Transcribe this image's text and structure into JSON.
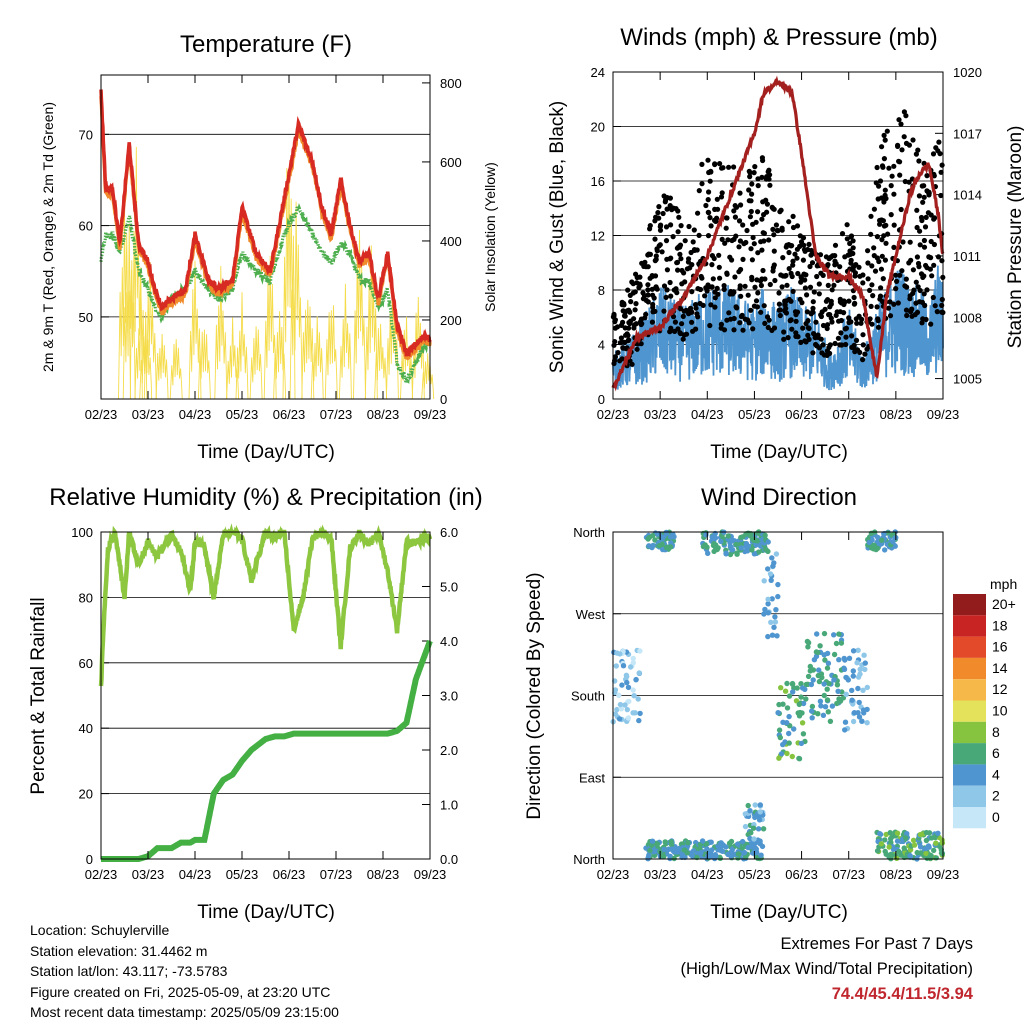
{
  "footer": {
    "location": "Location: Schuylerville",
    "elevation": "Station elevation: 31.4462 m",
    "latlon": "Station lat/lon: 43.117; -73.5783",
    "created": "Figure created on Fri, 2025-05-09, at 23:20 UTC",
    "recent": "Most recent data timestamp: 2025/05/09 23:15:00"
  },
  "extremes": {
    "title": "Extremes For Past 7 Days",
    "subtitle": "(High/Low/Max Wind/Total Precipitation)",
    "values": "74.4/45.4/11.5/3.94"
  },
  "colors": {
    "temp_2m": "#d62a22",
    "temp_9m": "#f08a2a",
    "dewpoint": "#4cae4c",
    "solar": "#f5dc4a",
    "wind": "#4f95cf",
    "gust": "#000000",
    "pressure": "#a3201f",
    "humidity": "#8dc63f",
    "precip": "#44b044"
  },
  "chart_data": [
    {
      "type": "line",
      "title": "Temperature (F)",
      "xlabel": "Time (Day/UTC)",
      "ylabel": "2m & 9m T (Red, Orange) & 2m Td (Green)",
      "y2label": "Solar Insolation (Yellow)",
      "x_ticks": [
        "02/23",
        "03/23",
        "04/23",
        "05/23",
        "06/23",
        "07/23",
        "08/23",
        "09/23"
      ],
      "y_ticks": [
        "50",
        "60",
        "70"
      ],
      "y2_ticks": [
        "0",
        "200",
        "400",
        "600",
        "800"
      ],
      "ylim": [
        41,
        76.5
      ],
      "y2lim": [
        0,
        820
      ],
      "grid": true,
      "x": [
        0,
        0.1,
        0.25,
        0.4,
        0.6,
        0.8,
        1.0,
        1.15,
        1.3,
        1.5,
        1.8,
        2.0,
        2.3,
        2.5,
        2.8,
        3.0,
        3.3,
        3.6,
        3.9,
        4.2,
        4.5,
        4.7,
        4.9,
        5.1,
        5.3,
        5.5,
        5.7,
        5.9,
        6.1,
        6.3,
        6.5,
        6.7,
        6.9,
        7.0
      ],
      "series": [
        {
          "name": "2m T",
          "values": [
            75,
            64,
            64,
            58,
            69,
            58,
            56,
            53,
            51,
            52,
            53,
            59,
            54,
            53,
            54,
            62,
            57,
            55,
            63,
            71,
            67,
            62,
            59,
            65,
            60,
            56,
            57,
            52,
            57,
            49,
            46,
            47,
            48,
            47.5
          ]
        },
        {
          "name": "9m T",
          "values": [
            74,
            63.5,
            63.5,
            57.5,
            68.5,
            57.5,
            55.5,
            52.5,
            50.5,
            51.5,
            52.5,
            58.5,
            53.5,
            52.5,
            53.5,
            61.5,
            56.5,
            54.5,
            62.5,
            70.5,
            66.5,
            61.5,
            58.5,
            64.5,
            59.5,
            55.5,
            56.5,
            51.5,
            56.5,
            48.5,
            45.5,
            46.5,
            47.5,
            47
          ]
        },
        {
          "name": "2m Td",
          "values": [
            56,
            59,
            59,
            57,
            61,
            55,
            53,
            51,
            50,
            52,
            53,
            55,
            53,
            52,
            53,
            57,
            55,
            54,
            59,
            62,
            59,
            57,
            56,
            58,
            57,
            54,
            54,
            51,
            53,
            45,
            43,
            45,
            47,
            47
          ]
        }
      ],
      "solar_peaks": [
        {
          "x": 0.5,
          "value": 540
        },
        {
          "x": 0.6,
          "value": 460
        },
        {
          "x": 0.75,
          "value": 680
        },
        {
          "x": 0.85,
          "value": 300
        },
        {
          "x": 0.95,
          "value": 240
        },
        {
          "x": 1.05,
          "value": 360
        },
        {
          "x": 1.3,
          "value": 220
        },
        {
          "x": 1.6,
          "value": 180
        },
        {
          "x": 2.0,
          "value": 370
        },
        {
          "x": 2.2,
          "value": 240
        },
        {
          "x": 2.55,
          "value": 370
        },
        {
          "x": 2.8,
          "value": 210
        },
        {
          "x": 3.0,
          "value": 300
        },
        {
          "x": 3.3,
          "value": 240
        },
        {
          "x": 3.6,
          "value": 410
        },
        {
          "x": 3.8,
          "value": 260
        },
        {
          "x": 4.0,
          "value": 760
        },
        {
          "x": 4.15,
          "value": 560
        },
        {
          "x": 4.4,
          "value": 320
        },
        {
          "x": 4.6,
          "value": 240
        },
        {
          "x": 4.9,
          "value": 310
        },
        {
          "x": 5.2,
          "value": 310
        },
        {
          "x": 5.5,
          "value": 520
        },
        {
          "x": 5.75,
          "value": 410
        },
        {
          "x": 5.95,
          "value": 240
        },
        {
          "x": 6.2,
          "value": 320
        },
        {
          "x": 6.5,
          "value": 230
        },
        {
          "x": 6.75,
          "value": 310
        },
        {
          "x": 6.95,
          "value": 150
        }
      ]
    },
    {
      "type": "scatter",
      "title": "Winds (mph) & Pressure (mb)",
      "xlabel": "Time (Day/UTC)",
      "ylabel": "Sonic Wind & Gust (Blue, Black)",
      "y2label": "Station Pressure (Maroon)",
      "x_ticks": [
        "02/23",
        "03/23",
        "04/23",
        "05/23",
        "06/23",
        "07/23",
        "08/23",
        "09/23"
      ],
      "y_ticks": [
        "0",
        "4",
        "8",
        "12",
        "16",
        "20",
        "24"
      ],
      "y2_ticks": [
        "1005",
        "1008",
        "1011",
        "1014",
        "1017",
        "1020"
      ],
      "ylim": [
        0,
        24
      ],
      "y2lim": [
        1004,
        1020
      ],
      "grid": true,
      "x": [
        0,
        0.5,
        1.0,
        1.5,
        2.0,
        2.5,
        3.0,
        3.2,
        3.5,
        3.8,
        4.0,
        4.3,
        4.6,
        4.8,
        5.0,
        5.3,
        5.6,
        5.8,
        6.1,
        6.3,
        6.5,
        6.7,
        6.9,
        7.0
      ],
      "series": [
        {
          "name": "Wind",
          "values": [
            2,
            3,
            5,
            4,
            5,
            5,
            4,
            5,
            4,
            5,
            4,
            4,
            2,
            3,
            4,
            2,
            4,
            5,
            6,
            5,
            5,
            4,
            6,
            5
          ]
        },
        {
          "name": "Gust",
          "values": [
            4,
            6,
            10,
            9,
            12,
            11,
            11,
            12,
            9,
            9,
            8,
            7,
            7,
            8,
            9,
            6,
            11,
            13,
            14,
            13,
            12,
            11,
            13,
            12
          ]
        },
        {
          "name": "Pressure",
          "values": [
            1004.5,
            1007,
            1007.5,
            1009,
            1011,
            1014,
            1017,
            1019,
            1019.5,
            1019,
            1016,
            1011,
            1010,
            1010,
            1010,
            1009,
            1005,
            1009,
            1012,
            1014,
            1015,
            1015.5,
            1013,
            1011
          ]
        }
      ]
    },
    {
      "type": "line",
      "title": "Relative Humidity (%) & Precipitation (in)",
      "xlabel": "Time (Day/UTC)",
      "ylabel": "Percent & Total Rainfall",
      "x_ticks": [
        "02/23",
        "03/23",
        "04/23",
        "05/23",
        "06/23",
        "07/23",
        "08/23",
        "09/23"
      ],
      "y_ticks": [
        "0",
        "20",
        "40",
        "60",
        "80",
        "100"
      ],
      "y2_ticks": [
        "0.0",
        "1.0",
        "2.0",
        "3.0",
        "4.0",
        "5.0",
        "6.0"
      ],
      "ylim": [
        0,
        100
      ],
      "y2lim": [
        0,
        6
      ],
      "grid": true,
      "x": [
        0,
        0.05,
        0.15,
        0.3,
        0.5,
        0.6,
        0.8,
        1.0,
        1.2,
        1.5,
        1.7,
        1.9,
        2.0,
        2.2,
        2.4,
        2.6,
        2.8,
        3.0,
        3.2,
        3.5,
        3.7,
        3.9,
        4.1,
        4.3,
        4.5,
        4.7,
        4.9,
        5.1,
        5.3,
        5.5,
        5.7,
        5.9,
        6.1,
        6.3,
        6.5,
        6.7,
        7.0
      ],
      "series": [
        {
          "name": "RH",
          "values": [
            52,
            70,
            95,
            100,
            80,
            100,
            90,
            97,
            93,
            99,
            94,
            82,
            97,
            96,
            80,
            99,
            100,
            98,
            85,
            100,
            98,
            100,
            70,
            80,
            98,
            100,
            98,
            65,
            95,
            100,
            96,
            100,
            88,
            70,
            97,
            97,
            98
          ]
        },
        {
          "name": "Precip",
          "values": [
            0,
            0,
            0,
            0,
            0,
            0,
            0,
            0.05,
            0.2,
            0.2,
            0.3,
            0.3,
            0.35,
            0.35,
            1.2,
            1.45,
            1.55,
            1.8,
            2.0,
            2.2,
            2.25,
            2.25,
            2.3,
            2.3,
            2.3,
            2.3,
            2.3,
            2.3,
            2.3,
            2.3,
            2.3,
            2.3,
            2.3,
            2.35,
            2.5,
            3.3,
            4.0
          ]
        }
      ]
    },
    {
      "type": "scatter",
      "title": "Wind Direction",
      "xlabel": "Time (Day/UTC)",
      "ylabel": "Direction (Colored By Speed)",
      "x_ticks": [
        "02/23",
        "03/23",
        "04/23",
        "05/23",
        "06/23",
        "07/23",
        "08/23",
        "09/23"
      ],
      "y_ticks": [
        "North",
        "East",
        "South",
        "West",
        "North"
      ],
      "ylim": [
        0,
        360
      ],
      "grid": true,
      "legend_title": "mph",
      "legend_labels": [
        "0",
        "2",
        "4",
        "6",
        "8",
        "10",
        "12",
        "14",
        "16",
        "18",
        "20+"
      ],
      "legend_colors": [
        "#c6e7f8",
        "#8fc7e9",
        "#4f95cf",
        "#48a878",
        "#86c440",
        "#e3e25a",
        "#f7b84a",
        "#f08a2a",
        "#e34a2a",
        "#c92424",
        "#921b1c"
      ],
      "clusters": [
        {
          "x": [
            0.0,
            0.6
          ],
          "dir": [
            150,
            230
          ],
          "speed": 2
        },
        {
          "x": [
            0.7,
            1.3
          ],
          "dir": [
            340,
            360
          ],
          "speed": 5
        },
        {
          "x": [
            0.7,
            3.2
          ],
          "dir": [
            0,
            20
          ],
          "speed": 5
        },
        {
          "x": [
            1.9,
            3.3
          ],
          "dir": [
            335,
            360
          ],
          "speed": 5
        },
        {
          "x": [
            2.8,
            3.2
          ],
          "dir": [
            20,
            60
          ],
          "speed": 4
        },
        {
          "x": [
            3.2,
            3.5
          ],
          "dir": [
            240,
            340
          ],
          "speed": 3
        },
        {
          "x": [
            3.5,
            4.1
          ],
          "dir": [
            110,
            195
          ],
          "speed": 6
        },
        {
          "x": [
            4.1,
            4.9
          ],
          "dir": [
            150,
            250
          ],
          "speed": 5
        },
        {
          "x": [
            4.9,
            5.4
          ],
          "dir": [
            140,
            230
          ],
          "speed": 3
        },
        {
          "x": [
            5.4,
            6.0
          ],
          "dir": [
            340,
            360
          ],
          "speed": 5
        },
        {
          "x": [
            5.6,
            7.0
          ],
          "dir": [
            0,
            30
          ],
          "speed": 6
        }
      ]
    }
  ]
}
